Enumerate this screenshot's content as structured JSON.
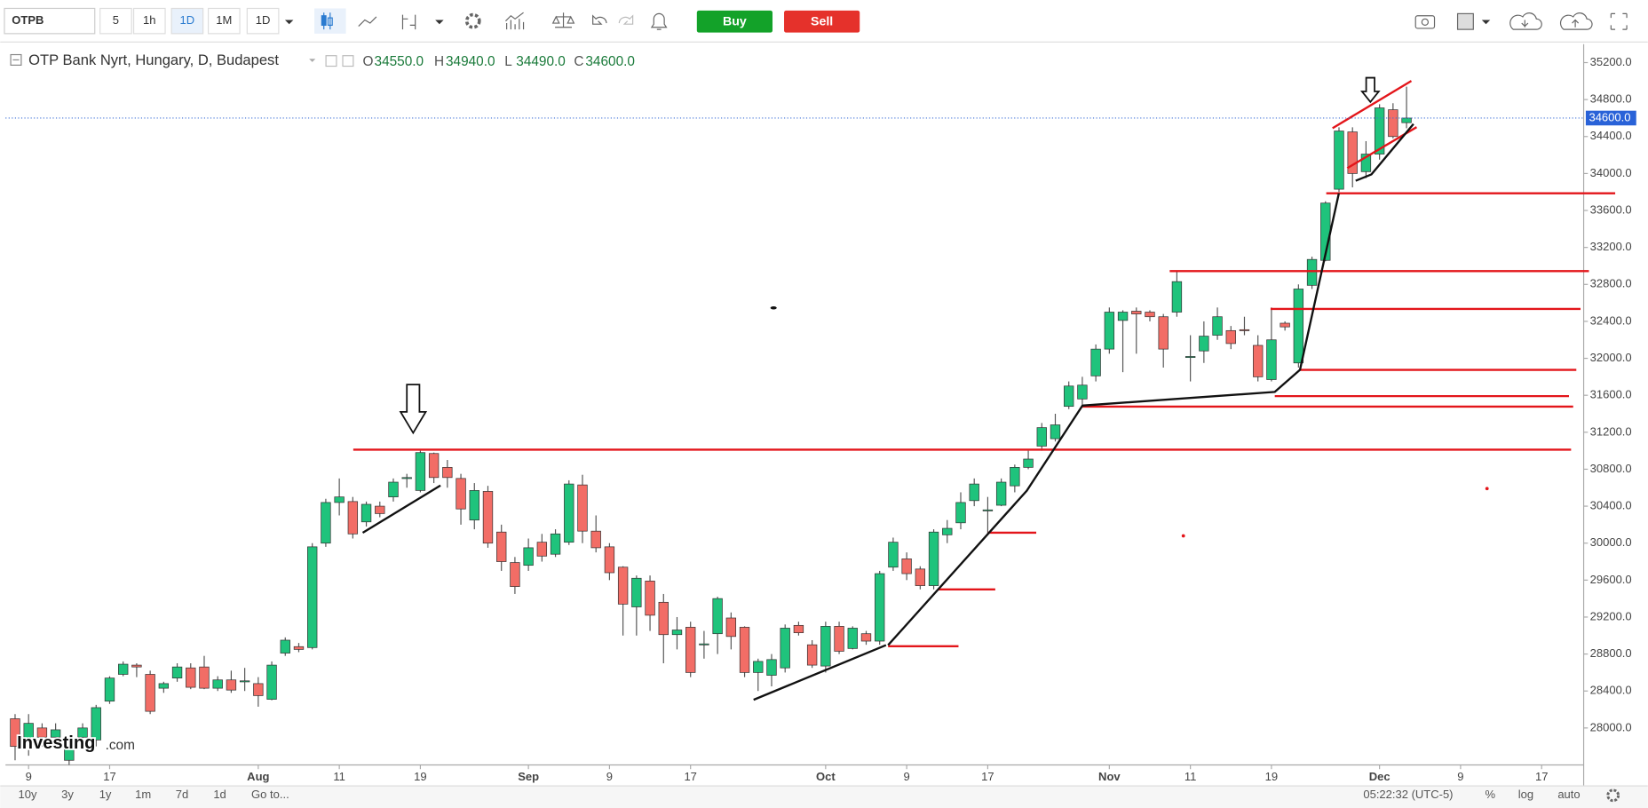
{
  "toolbar": {
    "symbol": "OTPB",
    "intervals": [
      "5",
      "1h",
      "1D",
      "1M",
      "1D"
    ],
    "buy": "Buy",
    "sell": "Sell"
  },
  "chart_data": {
    "type": "candlestick",
    "title": "OTP Bank Nyrt, Hungary, D, Budapest",
    "ohlc": [
      {
        "key": "O",
        "text": "34550.0"
      },
      {
        "key": "H",
        "text": "34940.0"
      },
      {
        "key": "L",
        "text": "34490.0"
      },
      {
        "key": "C",
        "text": "34600.0"
      }
    ],
    "up_color": "#1fc37c",
    "down_color": "#f26d66",
    "categories": [
      null,
      "9",
      null,
      null,
      null,
      null,
      null,
      "17",
      null,
      null,
      null,
      null,
      null,
      null,
      null,
      null,
      null,
      null,
      "Aug",
      null,
      null,
      null,
      null,
      null,
      "11",
      null,
      null,
      null,
      null,
      null,
      "19",
      null,
      null,
      null,
      null,
      null,
      null,
      null,
      "Sep",
      null,
      null,
      null,
      null,
      null,
      "9",
      null,
      null,
      null,
      null,
      null,
      "17",
      null,
      null,
      null,
      null,
      null,
      null,
      null,
      null,
      null,
      "Oct",
      null,
      null,
      null,
      null,
      null,
      "9",
      null,
      null,
      null,
      null,
      null,
      "17",
      null,
      null,
      null,
      null,
      null,
      null,
      null,
      null,
      "Nov",
      null,
      null,
      null,
      null,
      null,
      "11",
      null,
      null,
      null,
      null,
      null,
      "19",
      null,
      null,
      null,
      null,
      null,
      null,
      null,
      "Dec",
      null,
      null,
      null,
      null,
      null,
      "9",
      null,
      null,
      null,
      null,
      null,
      "17",
      null,
      null
    ],
    "open": [
      28100,
      27850,
      28000,
      27900,
      27650,
      27900,
      27870,
      28290,
      28580,
      28680,
      28580,
      28430,
      28540,
      28650,
      28660,
      28430,
      28520,
      28500,
      28480,
      28310,
      28810,
      28880,
      28870,
      30000,
      30440,
      30450,
      30230,
      30400,
      30500,
      30700,
      30570,
      30970,
      30820,
      30700,
      30250,
      30560,
      30120,
      29790,
      29760,
      30010,
      29880,
      30010,
      30630,
      30130,
      29960,
      29740,
      29310,
      29590,
      29360,
      29010,
      29090,
      28900,
      29020,
      29190,
      29090,
      28600,
      28570,
      28650,
      29110,
      28900,
      28670,
      29100,
      28860,
      29020,
      28940,
      29740,
      29830,
      29720,
      29540,
      30090,
      30220,
      30460,
      30350,
      30410,
      30620,
      30820,
      31050,
      31130,
      31480,
      31560,
      31810,
      32100,
      32410,
      32510,
      32500,
      32450,
      32500,
      32010,
      32080,
      32250,
      32300,
      32310,
      32140,
      31770,
      32380,
      31950,
      32790,
      33060,
      33830,
      34450,
      34020,
      34210,
      34690,
      34550,
      null,
      null,
      null,
      null,
      null,
      null,
      null,
      null,
      null,
      null,
      null,
      null
    ],
    "high": [
      28150,
      28150,
      28050,
      28050,
      27850,
      28050,
      28250,
      28560,
      28720,
      28700,
      28620,
      28500,
      28700,
      28700,
      28780,
      28560,
      28620,
      28650,
      28550,
      28720,
      28980,
      28920,
      30000,
      30480,
      30700,
      30500,
      30450,
      30450,
      30700,
      30750,
      31000,
      30980,
      30900,
      30750,
      30650,
      30620,
      30200,
      29850,
      30050,
      30100,
      30150,
      30680,
      30740,
      30300,
      30000,
      29750,
      29650,
      29650,
      29450,
      29200,
      29150,
      29050,
      29420,
      29250,
      29100,
      28750,
      28800,
      29120,
      29150,
      28950,
      29150,
      29150,
      29100,
      29050,
      29700,
      30060,
      29900,
      29750,
      30150,
      30250,
      30550,
      30700,
      30500,
      30700,
      30850,
      31000,
      31300,
      31400,
      31750,
      31800,
      32150,
      32550,
      32520,
      32550,
      32520,
      32480,
      32950,
      32250,
      32400,
      32550,
      32350,
      32450,
      32250,
      32550,
      32400,
      32800,
      33100,
      33700,
      34500,
      34500,
      34350,
      34750,
      34760,
      34940,
      null,
      null,
      null,
      null,
      null,
      null,
      null,
      null,
      null,
      null,
      null,
      null
    ],
    "low": [
      27650,
      27700,
      27800,
      27800,
      27600,
      27850,
      27800,
      28260,
      28560,
      28550,
      28150,
      28380,
      28500,
      28420,
      28420,
      28400,
      28380,
      28400,
      28230,
      28300,
      28780,
      28820,
      28850,
      29960,
      30300,
      30050,
      30180,
      30280,
      30450,
      30600,
      30550,
      30650,
      30600,
      30200,
      30150,
      29950,
      29700,
      29450,
      29700,
      29800,
      29850,
      29980,
      30000,
      29900,
      29600,
      29000,
      29000,
      29050,
      28700,
      28850,
      28550,
      28750,
      28800,
      28850,
      28550,
      28400,
      28450,
      28600,
      29000,
      28650,
      28600,
      28800,
      28850,
      28900,
      28900,
      29700,
      29600,
      29500,
      29500,
      30000,
      30150,
      30400,
      30100,
      30400,
      30550,
      30800,
      31000,
      31100,
      31450,
      31500,
      31750,
      32050,
      31850,
      32050,
      32400,
      31900,
      32450,
      31750,
      31950,
      32200,
      32100,
      32250,
      31750,
      31750,
      32300,
      31900,
      32750,
      33050,
      33800,
      33850,
      33950,
      34150,
      34380,
      34490,
      null,
      null,
      null,
      null,
      null,
      null,
      null,
      null,
      null,
      null,
      null,
      null
    ],
    "close": [
      27800,
      28050,
      27900,
      27980,
      27800,
      28000,
      28220,
      28540,
      28690,
      28660,
      28180,
      28480,
      28660,
      28440,
      28430,
      28520,
      28410,
      28510,
      28350,
      28680,
      28950,
      28850,
      29960,
      30440,
      30500,
      30100,
      30420,
      30320,
      30660,
      30710,
      30980,
      30710,
      30710,
      30370,
      30570,
      30000,
      29800,
      29530,
      29950,
      29860,
      30100,
      30640,
      30130,
      29950,
      29680,
      29340,
      29620,
      29220,
      29010,
      29060,
      28600,
      28910,
      29400,
      28990,
      28600,
      28720,
      28740,
      29080,
      29030,
      28680,
      29100,
      28830,
      29080,
      28940,
      29670,
      30010,
      29670,
      29540,
      30120,
      30160,
      30440,
      30640,
      30360,
      30660,
      30820,
      30910,
      31250,
      31280,
      31700,
      31710,
      32100,
      32500,
      32500,
      32480,
      32450,
      32100,
      32830,
      32020,
      32240,
      32450,
      32160,
      32300,
      31800,
      32200,
      32340,
      32750,
      33070,
      33680,
      34460,
      34000,
      34210,
      34710,
      34400,
      34600,
      null,
      null,
      null,
      null,
      null,
      null,
      null,
      null,
      null,
      null,
      null,
      null
    ],
    "ylim": [
      27600,
      35400
    ],
    "yticks": [
      {
        "value": 28000,
        "label": "28000.0"
      },
      {
        "value": 28400,
        "label": "28400.0"
      },
      {
        "value": 28800,
        "label": "28800.0"
      },
      {
        "value": 29200,
        "label": "29200.0"
      },
      {
        "value": 29600,
        "label": "29600.0"
      },
      {
        "value": 30000,
        "label": "30000.0"
      },
      {
        "value": 30400,
        "label": "30400.0"
      },
      {
        "value": 30800,
        "label": "30800.0"
      },
      {
        "value": 31200,
        "label": "31200.0"
      },
      {
        "value": 31600,
        "label": "31600.0"
      },
      {
        "value": 32000,
        "label": "32000.0"
      },
      {
        "value": 32400,
        "label": "32400.0"
      },
      {
        "value": 32800,
        "label": "32800.0"
      },
      {
        "value": 33200,
        "label": "33200.0"
      },
      {
        "value": 33600,
        "label": "33600.0"
      },
      {
        "value": 34000,
        "label": "34000.0"
      },
      {
        "value": 34400,
        "label": "34400.0"
      },
      {
        "value": 34800,
        "label": "34800.0"
      },
      {
        "value": 35200,
        "label": "35200.0"
      }
    ],
    "last_price": {
      "value": 34600,
      "label": "34600.0"
    },
    "grid": false
  },
  "bottom": {
    "ranges": [
      "10y",
      "3y",
      "1y",
      "1m",
      "7d",
      "1d"
    ],
    "goto": "Go to...",
    "time": "05:22:32 (UTC-5)",
    "scale_options": [
      "%",
      "log",
      "auto"
    ]
  },
  "logo": {
    "main": "Investing",
    "suffix": ".com"
  }
}
